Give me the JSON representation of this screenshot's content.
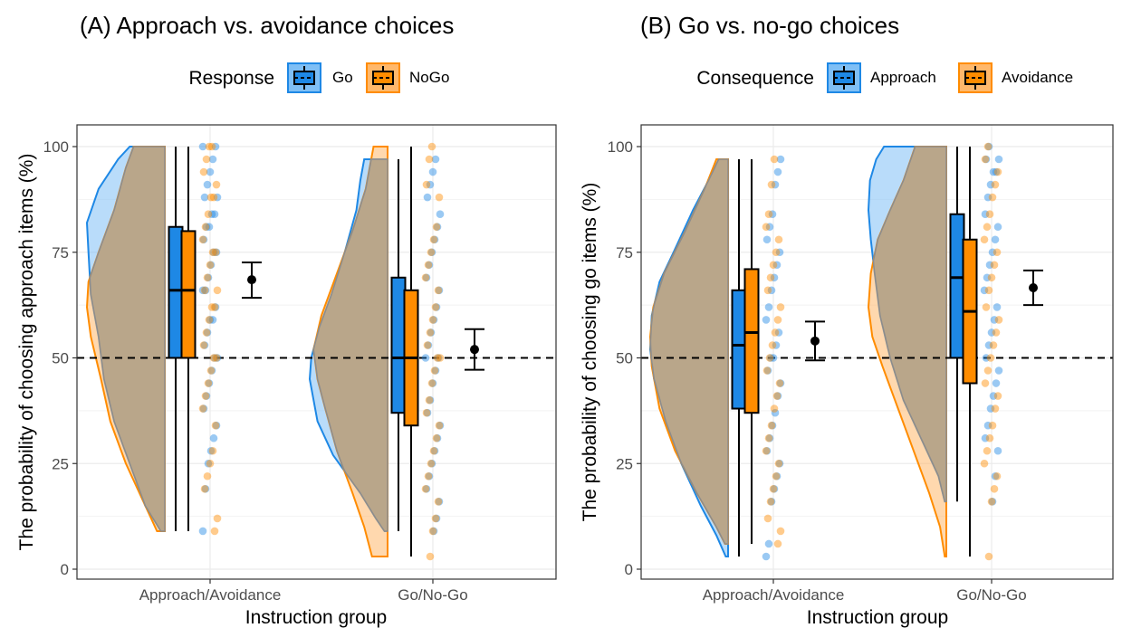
{
  "colors": {
    "approach_go": "#1E88E5",
    "avoidance_nogo": "#FF8C00",
    "approach_go_fill": "#7FBFF5",
    "avoidance_nogo_fill": "#FFB86B",
    "overlap_fill": "#B9A68A",
    "grid": "#EBEBEB",
    "panel_border": "#333333",
    "text_dark": "#000000",
    "tick_text": "#4D4D4D"
  },
  "chart_data": [
    {
      "type": "raincloud",
      "title": "(A) Approach vs. avoidance choices",
      "xlabel": "Instruction group",
      "ylabel": "The probability of choosing approach items (%)",
      "categories": [
        "Approach/Avoidance",
        "Go/No-Go"
      ],
      "ylim": [
        0,
        100
      ],
      "yticks": [
        0,
        25,
        50,
        75,
        100
      ],
      "reference_line": 50,
      "legend": {
        "title": "Response",
        "placement": "top",
        "entries": [
          {
            "label": "Go",
            "color_key": "approach_go"
          },
          {
            "label": "NoGo",
            "color_key": "avoidance_nogo"
          }
        ]
      },
      "box": [
        {
          "category": "Approach/Avoidance",
          "series": "Go",
          "min": 9,
          "q1": 50,
          "median": 66,
          "q3": 81,
          "max": 100
        },
        {
          "category": "Approach/Avoidance",
          "series": "NoGo",
          "min": 9,
          "q1": 50,
          "median": 66,
          "q3": 80,
          "max": 100
        },
        {
          "category": "Go/No-Go",
          "series": "Go",
          "min": 9,
          "q1": 37,
          "median": 50,
          "q3": 69,
          "max": 97
        },
        {
          "category": "Go/No-Go",
          "series": "NoGo",
          "min": 3,
          "q1": 34,
          "median": 50,
          "q3": 66,
          "max": 100
        }
      ],
      "mean_ci": [
        {
          "category": "Approach/Avoidance",
          "mean": 68.5,
          "lower": 64.2,
          "upper": 72.6
        },
        {
          "category": "Go/No-Go",
          "mean": 52.0,
          "lower": 47.2,
          "upper": 56.8
        }
      ],
      "density": [
        {
          "category": "Approach/Avoidance",
          "series": "Go",
          "min": 9,
          "max": 100,
          "y": [
            9,
            15,
            25,
            35,
            45,
            55,
            65,
            75,
            82,
            90,
            97,
            100
          ],
          "w": [
            0.05,
            0.25,
            0.45,
            0.65,
            0.78,
            0.85,
            0.95,
            0.98,
            1.0,
            0.85,
            0.6,
            0.45
          ]
        },
        {
          "category": "Approach/Avoidance",
          "series": "NoGo",
          "min": 9,
          "max": 100,
          "y": [
            9,
            15,
            25,
            35,
            45,
            55,
            62,
            68,
            75,
            85,
            95,
            100
          ],
          "w": [
            0.1,
            0.25,
            0.5,
            0.7,
            0.82,
            0.95,
            1.0,
            0.98,
            0.85,
            0.65,
            0.5,
            0.4
          ]
        },
        {
          "category": "Go/No-Go",
          "series": "Go",
          "min": 9,
          "max": 97,
          "y": [
            9,
            12,
            18,
            27,
            35,
            45,
            50,
            57,
            65,
            75,
            85,
            92,
            97
          ],
          "w": [
            0.04,
            0.15,
            0.35,
            0.7,
            0.9,
            1.0,
            0.98,
            0.88,
            0.72,
            0.55,
            0.4,
            0.35,
            0.3
          ]
        },
        {
          "category": "Go/No-Go",
          "series": "NoGo",
          "min": 3,
          "max": 100,
          "y": [
            3,
            10,
            18,
            28,
            38,
            45,
            52,
            60,
            70,
            80,
            90,
            100
          ],
          "w": [
            0.2,
            0.3,
            0.45,
            0.65,
            0.8,
            0.9,
            0.95,
            0.85,
            0.65,
            0.45,
            0.28,
            0.18
          ]
        }
      ],
      "points": [
        {
          "category": "Approach/Avoidance",
          "series": "Go",
          "values": [
            9,
            19,
            25,
            28,
            31,
            34,
            38,
            41,
            44,
            47,
            50,
            50,
            53,
            56,
            59,
            59,
            62,
            66,
            66,
            69,
            72,
            75,
            75,
            78,
            81,
            81,
            84,
            84,
            88,
            88,
            91,
            94,
            97,
            100,
            100
          ]
        },
        {
          "category": "Approach/Avoidance",
          "series": "NoGo",
          "values": [
            9,
            12,
            19,
            22,
            25,
            28,
            34,
            38,
            41,
            44,
            47,
            50,
            50,
            53,
            56,
            59,
            62,
            62,
            66,
            66,
            69,
            72,
            75,
            75,
            78,
            81,
            84,
            88,
            88,
            91,
            94,
            97,
            100,
            100
          ]
        },
        {
          "category": "Go/No-Go",
          "series": "Go",
          "values": [
            9,
            12,
            16,
            19,
            22,
            25,
            28,
            31,
            34,
            37,
            40,
            44,
            47,
            50,
            50,
            53,
            56,
            59,
            62,
            66,
            69,
            72,
            75,
            78,
            81,
            84,
            88,
            91,
            94,
            97
          ]
        },
        {
          "category": "Go/No-Go",
          "series": "NoGo",
          "values": [
            3,
            9,
            12,
            16,
            19,
            22,
            25,
            28,
            31,
            34,
            37,
            40,
            44,
            47,
            50,
            50,
            53,
            56,
            59,
            62,
            66,
            69,
            72,
            75,
            78,
            81,
            88,
            91,
            97,
            100
          ]
        }
      ]
    },
    {
      "type": "raincloud",
      "title": "(B) Go vs. no-go choices",
      "xlabel": "Instruction group",
      "ylabel": "The probability of choosing go items (%)",
      "categories": [
        "Approach/Avoidance",
        "Go/No-Go"
      ],
      "ylim": [
        0,
        100
      ],
      "yticks": [
        0,
        25,
        50,
        75,
        100
      ],
      "reference_line": 50,
      "legend": {
        "title": "Consequence",
        "placement": "top",
        "entries": [
          {
            "label": "Approach",
            "color_key": "approach_go"
          },
          {
            "label": "Avoidance",
            "color_key": "avoidance_nogo"
          }
        ]
      },
      "box": [
        {
          "category": "Approach/Avoidance",
          "series": "Approach",
          "min": 3,
          "q1": 38,
          "median": 53,
          "q3": 66,
          "max": 97
        },
        {
          "category": "Approach/Avoidance",
          "series": "Avoidance",
          "min": 6,
          "q1": 37,
          "median": 56,
          "q3": 71,
          "max": 97
        },
        {
          "category": "Go/No-Go",
          "series": "Approach",
          "min": 16,
          "q1": 50,
          "median": 69,
          "q3": 84,
          "max": 100
        },
        {
          "category": "Go/No-Go",
          "series": "Avoidance",
          "min": 3,
          "q1": 44,
          "median": 61,
          "q3": 78,
          "max": 100
        }
      ],
      "mean_ci": [
        {
          "category": "Approach/Avoidance",
          "mean": 54.0,
          "lower": 49.4,
          "upper": 58.6
        },
        {
          "category": "Go/No-Go",
          "mean": 66.6,
          "lower": 62.5,
          "upper": 70.7
        }
      ],
      "density": [
        {
          "category": "Approach/Avoidance",
          "series": "Approach",
          "min": 3,
          "max": 97,
          "y": [
            3,
            8,
            15,
            25,
            35,
            45,
            52,
            60,
            68,
            75,
            85,
            92,
            97
          ],
          "w": [
            0.03,
            0.15,
            0.35,
            0.6,
            0.8,
            0.95,
            1.0,
            0.98,
            0.88,
            0.7,
            0.45,
            0.25,
            0.12
          ]
        },
        {
          "category": "Approach/Avoidance",
          "series": "Avoidance",
          "min": 6,
          "max": 97,
          "y": [
            6,
            10,
            18,
            28,
            38,
            48,
            55,
            62,
            70,
            80,
            90,
            97
          ],
          "w": [
            0.04,
            0.15,
            0.4,
            0.68,
            0.88,
            0.98,
            1.0,
            0.96,
            0.82,
            0.55,
            0.3,
            0.15
          ]
        },
        {
          "category": "Go/No-Go",
          "series": "Approach",
          "min": 16,
          "max": 100,
          "y": [
            16,
            22,
            30,
            40,
            50,
            60,
            70,
            78,
            85,
            92,
            97,
            100
          ],
          "w": [
            0.02,
            0.1,
            0.3,
            0.55,
            0.72,
            0.85,
            0.92,
            0.97,
            1.0,
            0.98,
            0.9,
            0.8
          ]
        },
        {
          "category": "Go/No-Go",
          "series": "Avoidance",
          "min": 3,
          "max": 100,
          "y": [
            3,
            10,
            18,
            28,
            38,
            48,
            55,
            62,
            70,
            78,
            85,
            92,
            100
          ],
          "w": [
            0.02,
            0.08,
            0.22,
            0.42,
            0.62,
            0.82,
            0.95,
            1.0,
            0.97,
            0.88,
            0.72,
            0.55,
            0.4
          ]
        }
      ],
      "points": [
        {
          "category": "Approach/Avoidance",
          "series": "Approach",
          "values": [
            3,
            6,
            16,
            19,
            22,
            25,
            28,
            31,
            34,
            37,
            41,
            44,
            47,
            50,
            50,
            53,
            56,
            59,
            62,
            66,
            69,
            72,
            75,
            78,
            81,
            84,
            91,
            94,
            97
          ]
        },
        {
          "category": "Approach/Avoidance",
          "series": "Avoidance",
          "values": [
            6,
            9,
            12,
            16,
            19,
            22,
            25,
            28,
            31,
            34,
            38,
            41,
            44,
            47,
            50,
            53,
            56,
            59,
            62,
            66,
            69,
            72,
            75,
            78,
            81,
            84,
            91,
            97
          ]
        },
        {
          "category": "Go/No-Go",
          "series": "Approach",
          "values": [
            16,
            22,
            28,
            31,
            34,
            38,
            41,
            44,
            47,
            50,
            53,
            56,
            59,
            62,
            66,
            69,
            72,
            75,
            78,
            81,
            84,
            88,
            91,
            94,
            94,
            97,
            97,
            100
          ]
        },
        {
          "category": "Go/No-Go",
          "series": "Avoidance",
          "values": [
            3,
            16,
            19,
            22,
            25,
            28,
            31,
            34,
            38,
            41,
            44,
            47,
            50,
            53,
            56,
            59,
            62,
            66,
            69,
            72,
            75,
            78,
            81,
            84,
            88,
            91,
            94,
            97,
            100
          ]
        }
      ]
    }
  ]
}
